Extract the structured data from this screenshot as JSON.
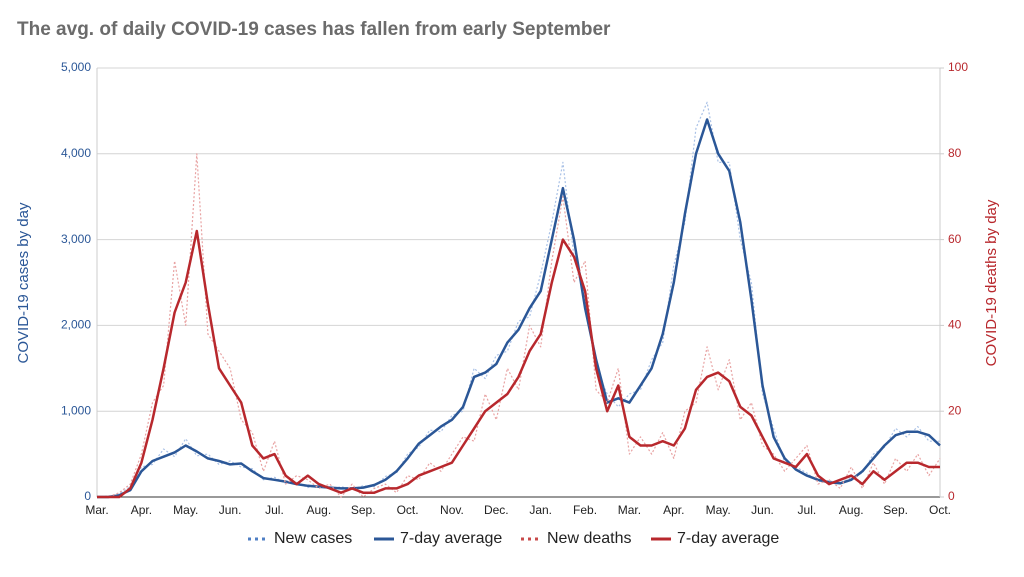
{
  "chart_data": {
    "type": "line",
    "title": "The avg. of daily COVID-19 cases has fallen from early September",
    "y_label": "COVID-19 cases by day",
    "y2_label": "COVID-19 deaths by day",
    "categories": [
      "Mar.",
      null,
      null,
      null,
      "Apr.",
      null,
      null,
      null,
      "May.",
      null,
      null,
      null,
      "Jun.",
      null,
      null,
      null,
      "Jul.",
      null,
      null,
      null,
      "Aug.",
      null,
      null,
      null,
      "Sep.",
      null,
      null,
      null,
      "Oct.",
      null,
      null,
      null,
      "Nov.",
      null,
      null,
      null,
      "Dec.",
      null,
      null,
      null,
      "Jan.",
      null,
      null,
      null,
      "Feb.",
      null,
      null,
      null,
      "Mar.",
      null,
      null,
      null,
      "Apr.",
      null,
      null,
      null,
      "May.",
      null,
      null,
      null,
      "Jun.",
      null,
      null,
      null,
      "Jul.",
      null,
      null,
      null,
      "Aug.",
      null,
      null,
      null,
      "Sep.",
      null,
      null,
      null,
      "Oct."
    ],
    "ylim": [
      0,
      5000
    ],
    "yticks": [
      0,
      {
        "value": 1000,
        "label": "1,000"
      },
      {
        "value": 2000,
        "label": "2,000"
      },
      {
        "value": 3000,
        "label": "3,000"
      },
      {
        "value": 4000,
        "label": "4,000"
      },
      {
        "value": 5000,
        "label": "5,000"
      }
    ],
    "y2lim": [
      0,
      100
    ],
    "y2ticks": [
      0,
      20,
      40,
      60,
      80,
      100
    ],
    "grid": true,
    "y_color": "#2b5797",
    "y2_color": "#b8282d",
    "series": [
      {
        "name": "New cases",
        "color": "#a9c1e6",
        "style": "dotted",
        "axis": "y",
        "values": [
          0,
          10,
          40,
          120,
          350,
          380,
          560,
          470,
          680,
          480,
          500,
          380,
          420,
          350,
          330,
          200,
          230,
          160,
          170,
          110,
          140,
          90,
          120,
          90,
          130,
          120,
          240,
          280,
          500,
          580,
          780,
          760,
          950,
          1000,
          1500,
          1380,
          1650,
          1700,
          2050,
          2100,
          2600,
          3200,
          3900,
          2800,
          2300,
          1500,
          1200,
          1050,
          1200,
          1250,
          1600,
          1800,
          2700,
          3200,
          4300,
          4600,
          3900,
          3900,
          3000,
          2500,
          1200,
          800,
          400,
          350,
          280,
          180,
          190,
          150,
          230,
          280,
          500,
          580,
          800,
          700,
          820,
          650,
          650
        ]
      },
      {
        "name": "7-day average",
        "color": "#2b5797",
        "style": "solid",
        "axis": "y",
        "values": [
          0,
          0,
          20,
          80,
          300,
          420,
          470,
          520,
          600,
          530,
          450,
          420,
          380,
          390,
          300,
          220,
          200,
          180,
          150,
          130,
          120,
          110,
          100,
          100,
          110,
          140,
          200,
          300,
          450,
          620,
          720,
          820,
          900,
          1050,
          1400,
          1450,
          1550,
          1800,
          1950,
          2200,
          2400,
          3000,
          3600,
          3000,
          2200,
          1600,
          1100,
          1150,
          1100,
          1300,
          1500,
          1900,
          2500,
          3300,
          4000,
          4400,
          4000,
          3800,
          3200,
          2300,
          1300,
          700,
          450,
          320,
          250,
          200,
          170,
          160,
          200,
          300,
          450,
          600,
          720,
          760,
          760,
          720,
          600
        ]
      },
      {
        "name": "New deaths",
        "color": "#e8a3a3",
        "style": "dotted",
        "axis": "y2",
        "values": [
          0,
          0,
          1,
          3,
          10,
          22,
          26,
          55,
          40,
          80,
          38,
          34,
          30,
          18,
          15,
          6,
          13,
          3,
          5,
          4,
          2,
          3,
          0,
          3,
          0,
          2,
          3,
          1,
          5,
          4,
          8,
          6,
          10,
          14,
          13,
          24,
          18,
          30,
          25,
          40,
          35,
          55,
          70,
          50,
          55,
          25,
          22,
          30,
          10,
          14,
          10,
          15,
          9,
          20,
          22,
          35,
          25,
          32,
          18,
          22,
          12,
          10,
          6,
          9,
          12,
          3,
          4,
          2,
          7,
          2,
          8,
          3,
          9,
          6,
          10,
          5,
          9
        ]
      },
      {
        "name": "7-day average",
        "color": "#b8282d",
        "style": "solid",
        "axis": "y2",
        "values": [
          0,
          0,
          0,
          2,
          8,
          18,
          30,
          43,
          50,
          62,
          45,
          30,
          26,
          22,
          12,
          9,
          10,
          5,
          3,
          5,
          3,
          2,
          1,
          2,
          1,
          1,
          2,
          2,
          3,
          5,
          6,
          7,
          8,
          12,
          16,
          20,
          22,
          24,
          28,
          34,
          38,
          50,
          60,
          56,
          48,
          30,
          20,
          26,
          14,
          12,
          12,
          13,
          12,
          16,
          25,
          28,
          29,
          27,
          21,
          19,
          14,
          9,
          8,
          7,
          10,
          5,
          3,
          4,
          5,
          3,
          6,
          4,
          6,
          8,
          8,
          7,
          7
        ]
      }
    ]
  }
}
